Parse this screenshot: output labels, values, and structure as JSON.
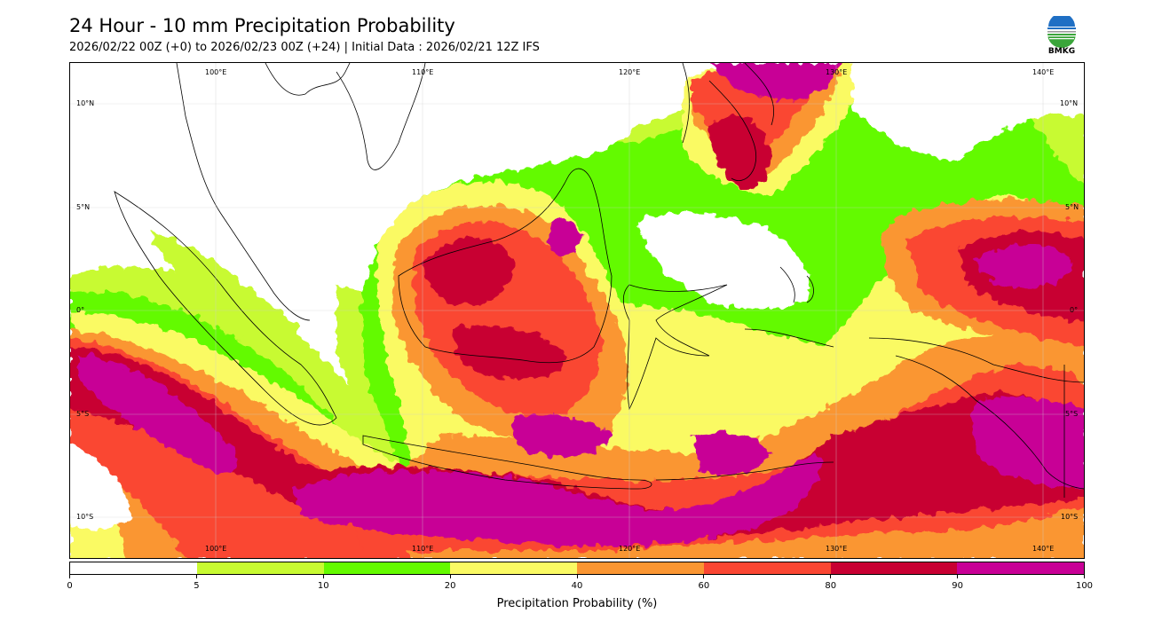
{
  "header": {
    "title": "24 Hour - 10 mm Precipitation Probability",
    "subtitle": "2026/02/22 00Z (+0) to 2026/02/23 00Z (+24) | Initial Data : 2026/02/21 12Z IFS"
  },
  "logo": {
    "text": "BMKG",
    "icon": "bmkg-logo"
  },
  "map": {
    "longitude_labels": [
      "100°E",
      "110°E",
      "120°E",
      "130°E",
      "140°E"
    ],
    "latitude_labels": [
      "10°N",
      "5°N",
      "0°",
      "5°S",
      "10°S"
    ],
    "extent": {
      "lon_min": 94.5,
      "lon_max": 143.6,
      "lat_min": -12.2,
      "lat_max": 11.9
    }
  },
  "colorbar": {
    "ticks": [
      "0",
      "5",
      "10",
      "20",
      "40",
      "60",
      "80",
      "90",
      "100"
    ],
    "colors": [
      "#ffffff",
      "#c8fa32",
      "#64fa00",
      "#fafa64",
      "#fa9632",
      "#fa4632",
      "#c80032",
      "#c80096"
    ],
    "label": "Precipitation Probability (%)"
  }
}
